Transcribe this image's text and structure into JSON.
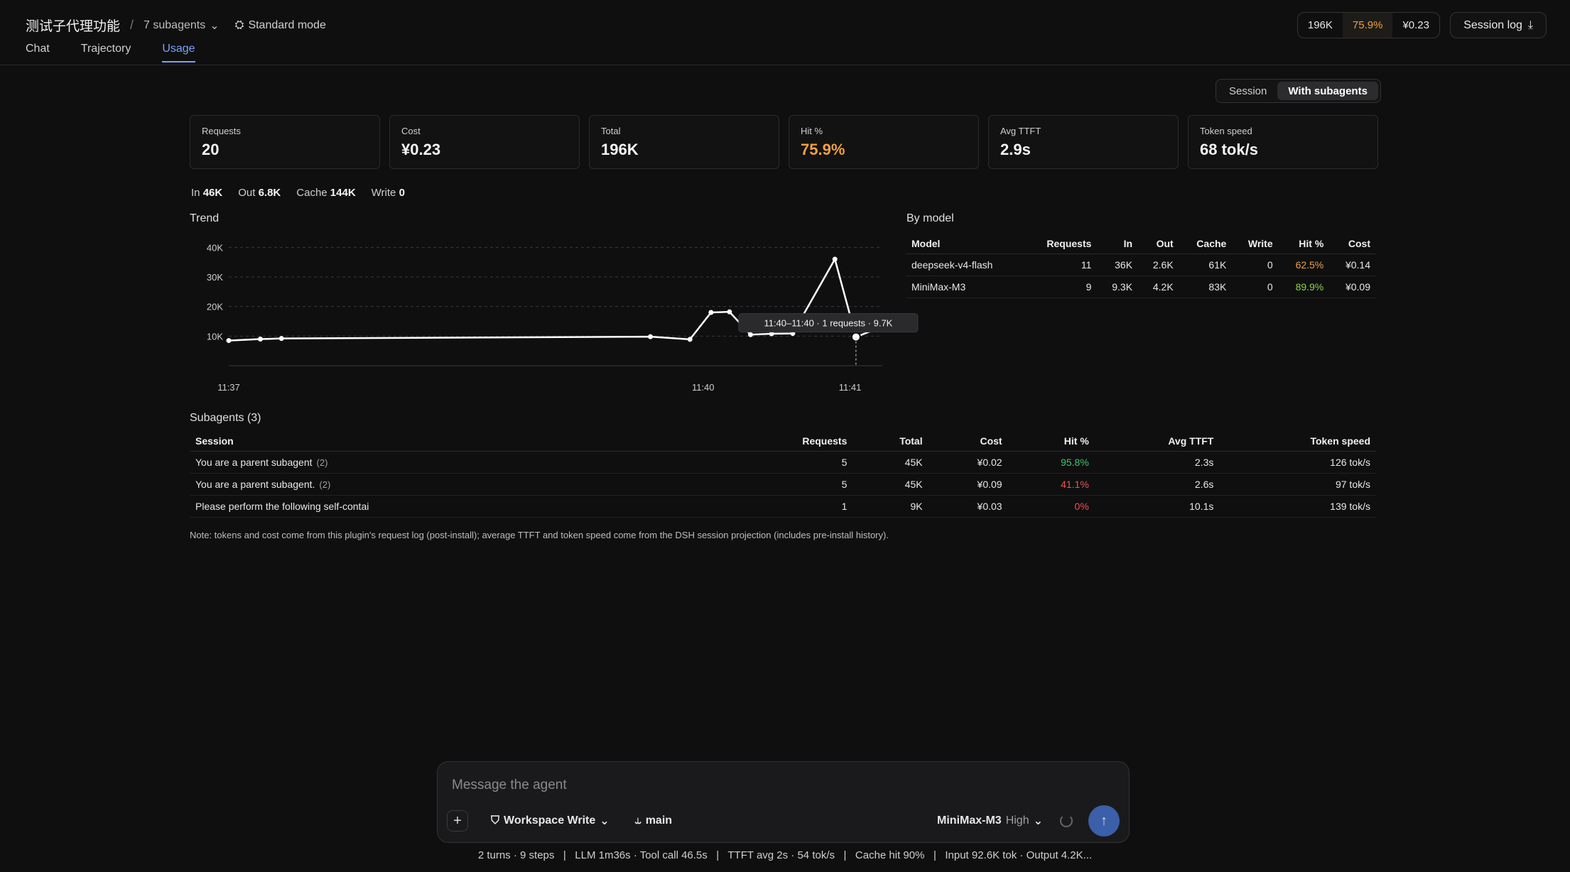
{
  "header": {
    "title": "测试子代理功能",
    "separator": "/",
    "subagents_label": "7 subagents",
    "mode_label": "Standard mode",
    "stats": {
      "tokens": "196K",
      "hit": "75.9%",
      "cost": "¥0.23"
    },
    "session_log_label": "Session log"
  },
  "tabs": [
    {
      "label": "Chat",
      "active": false
    },
    {
      "label": "Trajectory",
      "active": false
    },
    {
      "label": "Usage",
      "active": true
    }
  ],
  "scope_toggle": {
    "session": "Session",
    "with_subagents": "With subagents",
    "selected": "With subagents"
  },
  "cards": [
    {
      "label": "Requests",
      "value": "20"
    },
    {
      "label": "Cost",
      "value": "¥0.23"
    },
    {
      "label": "Total",
      "value": "196K"
    },
    {
      "label": "Hit %",
      "value": "75.9%"
    },
    {
      "label": "Avg TTFT",
      "value": "2.9s"
    },
    {
      "label": "Token speed",
      "value": "68 tok/s"
    }
  ],
  "io": {
    "in_label": "In",
    "in_value": "46K",
    "out_label": "Out",
    "out_value": "6.8K",
    "cache_label": "Cache",
    "cache_value": "144K",
    "write_label": "Write",
    "write_value": "0"
  },
  "trend": {
    "title": "Trend",
    "tooltip": "11:40–11:40 · 1 requests · 9.7K"
  },
  "chart_data": {
    "type": "line",
    "title": "Trend",
    "y_ticks": [
      "10K",
      "20K",
      "30K",
      "40K"
    ],
    "x_ticks": [
      "11:37",
      "11:40",
      "11:41"
    ],
    "ylim": [
      0,
      42000
    ],
    "grid": true,
    "series": [
      {
        "points": [
          {
            "t": "11:37:00",
            "y": 8500
          },
          {
            "t": "11:37:12",
            "y": 9000
          },
          {
            "t": "11:37:20",
            "y": 9200
          },
          {
            "t": "11:39:40",
            "y": 9800
          },
          {
            "t": "11:39:55",
            "y": 8900
          },
          {
            "t": "11:40:03",
            "y": 18000
          },
          {
            "t": "11:40:10",
            "y": 18200
          },
          {
            "t": "11:40:18",
            "y": 10500
          },
          {
            "t": "11:40:26",
            "y": 10800
          },
          {
            "t": "11:40:34",
            "y": 10900
          },
          {
            "t": "11:40:50",
            "y": 36000
          },
          {
            "t": "11:40:58",
            "y": 9700
          },
          {
            "t": "11:41:08",
            "y": 13200
          }
        ]
      }
    ]
  },
  "by_model": {
    "title": "By model",
    "columns": [
      "Model",
      "Requests",
      "In",
      "Out",
      "Cache",
      "Write",
      "Hit %",
      "Cost"
    ],
    "rows": [
      {
        "model": "deepseek-v4-flash",
        "requests": "11",
        "in": "36K",
        "out": "2.6K",
        "cache": "61K",
        "write": "0",
        "hit": "62.5%",
        "cost": "¥0.14",
        "hit_color": "#f0a040"
      },
      {
        "model": "MiniMax-M3",
        "requests": "9",
        "in": "9.3K",
        "out": "4.2K",
        "cache": "83K",
        "write": "0",
        "hit": "89.9%",
        "cost": "¥0.09",
        "hit_color": "#8bd34a"
      }
    ]
  },
  "subagents": {
    "title": "Subagents (3)",
    "columns": [
      "Session",
      "Requests",
      "Total",
      "Cost",
      "Hit %",
      "Avg TTFT",
      "Token speed"
    ],
    "rows": [
      {
        "session": "You are a parent subagent",
        "count": "(2)",
        "requests": "5",
        "total": "45K",
        "cost": "¥0.02",
        "hit": "95.8%",
        "ttft": "2.3s",
        "speed": "126 tok/s",
        "hit_color": "#3ec46d"
      },
      {
        "session": "You are a parent subagent.",
        "count": "(2)",
        "requests": "5",
        "total": "45K",
        "cost": "¥0.09",
        "hit": "41.1%",
        "ttft": "2.6s",
        "speed": "97 tok/s",
        "hit_color": "#ef5350"
      },
      {
        "session": "Please perform the following self-contai",
        "count": "",
        "requests": "1",
        "total": "9K",
        "cost": "¥0.03",
        "hit": "0%",
        "ttft": "10.1s",
        "speed": "139 tok/s",
        "hit_color": "#ef5350"
      }
    ]
  },
  "note": "Note: tokens and cost come from this plugin's request log (post-install); average TTFT and token speed come from the DSH session projection (includes pre-install history).",
  "composer": {
    "placeholder": "Message the agent",
    "workspace_label": "Workspace Write",
    "branch_label": "main",
    "model_label": "MiniMax-M3",
    "effort_label": "High"
  },
  "footer": "2 turns · 9 steps   |   LLM 1m36s · Tool call 46.5s   |   TTFT avg 2s · 54 tok/s   |   Cache hit 90%   |   Input 92.6K tok · Output 4.2K..."
}
